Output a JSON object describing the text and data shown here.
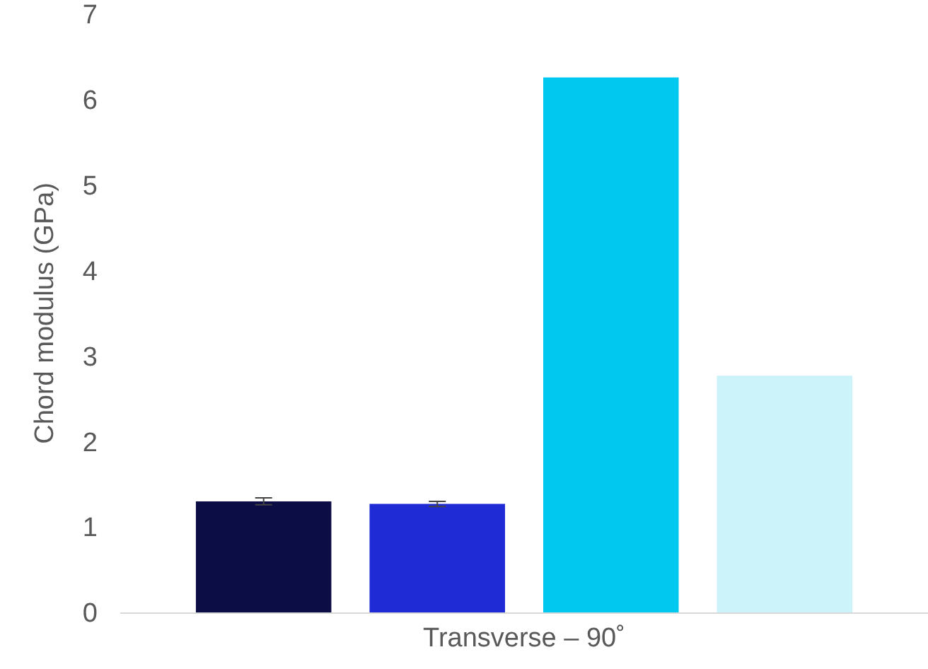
{
  "chart_data": {
    "type": "bar",
    "ylabel": "Chord modulus (GPa)",
    "categories": [
      "Transverse – 90˚"
    ],
    "series": [
      {
        "color": "#0d0d45",
        "values": [
          1.3
        ],
        "errors": [
          0.04
        ]
      },
      {
        "color": "#1f2bd4",
        "values": [
          1.27
        ],
        "errors": [
          0.03
        ]
      },
      {
        "color": "#00c8ee",
        "values": [
          6.26
        ]
      },
      {
        "color": "#ccf2fa",
        "values": [
          2.77
        ]
      }
    ],
    "ylim": [
      0,
      7
    ],
    "yticks": [
      0,
      1,
      2,
      3,
      4,
      5,
      6,
      7
    ],
    "grid": false
  }
}
